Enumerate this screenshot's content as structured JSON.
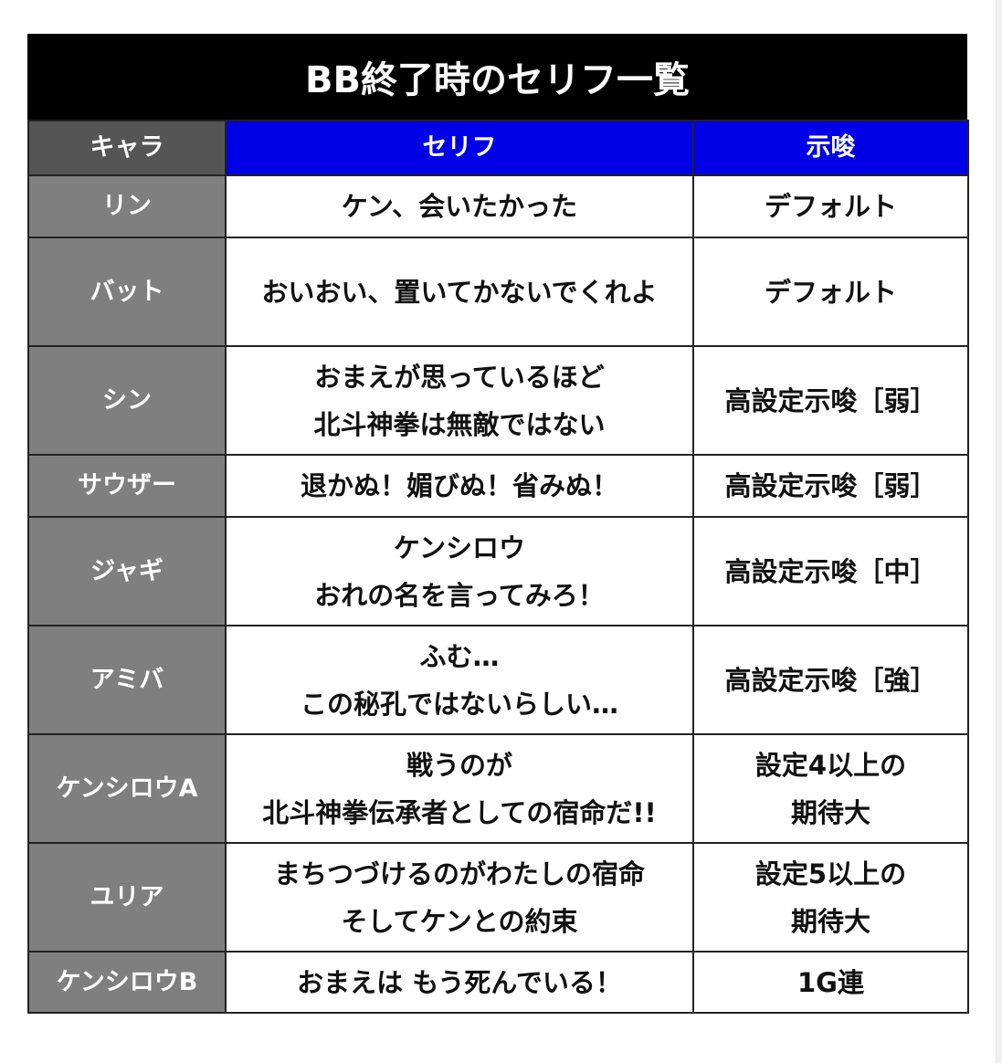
{
  "title": "BB終了時のセリフ一覧",
  "headers": [
    "キャラ",
    "セリフ",
    "示唆"
  ],
  "colors": {
    "title_bg": "#000000",
    "header_chara_bg": "#555555",
    "header_bg": "#0000e6",
    "chara_bg": "#7f7f7f"
  },
  "rows": [
    {
      "chara": "リン",
      "line": "ケン、会いたかった",
      "hint": "デフォルト",
      "h": 68
    },
    {
      "chara": "バット",
      "line": "おいおい、置いてかないでくれよ",
      "hint": "デフォルト",
      "h": 119
    },
    {
      "chara": "シン",
      "line": "おまえが思っているほど\n北斗神拳は無敵ではない",
      "hint": "高設定示唆［弱］",
      "h": 119
    },
    {
      "chara": "サウザー",
      "line": "退かぬ！媚びぬ！省みぬ！",
      "hint": "高設定示唆［弱］",
      "h": 68
    },
    {
      "chara": "ジャギ",
      "line": "ケンシロウ\nおれの名を言ってみろ！",
      "hint": "高設定示唆［中］",
      "h": 119
    },
    {
      "chara": "アミバ",
      "line": "ふむ…\nこの秘孔ではないらしい…",
      "hint": "高設定示唆［強］",
      "h": 119
    },
    {
      "chara": "ケンシロウA",
      "line": "戦うのが\n北斗神拳伝承者としての宿命だ!!",
      "hint": "設定4以上の\n期待大",
      "h": 119
    },
    {
      "chara": "ユリア",
      "line": "まちつづけるのがわたしの宿命\nそしてケンとの約束",
      "hint": "設定5以上の\n期待大",
      "h": 119
    },
    {
      "chara": "ケンシロウB",
      "line": "おまえは もう死んでいる！",
      "hint": "1G連",
      "h": 67
    }
  ]
}
